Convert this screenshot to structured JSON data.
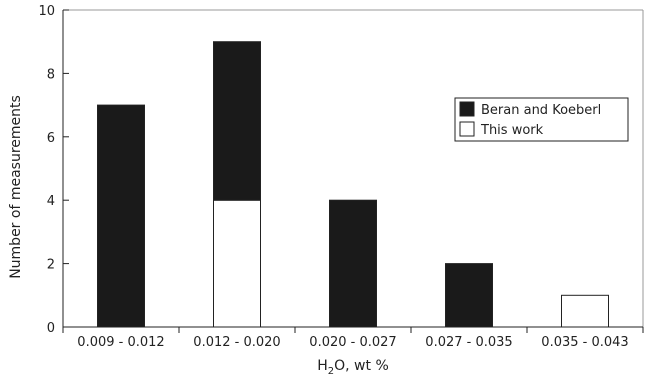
{
  "chart_data": {
    "type": "bar",
    "stacked": true,
    "categories": [
      "0.009 - 0.012",
      "0.012 - 0.020",
      "0.020 - 0.027",
      "0.027 - 0.035",
      "0.035 - 0.043"
    ],
    "series": [
      {
        "name": "This work",
        "color": "#ffffff",
        "values": [
          0,
          4,
          0,
          0,
          1
        ]
      },
      {
        "name": "Beran and Koeberl",
        "color": "#1a1a1a",
        "values": [
          7,
          5,
          4,
          2,
          0
        ]
      }
    ],
    "yticks": [
      0,
      2,
      4,
      6,
      8,
      10
    ],
    "ylim": [
      0,
      10
    ],
    "ylabel": "Number of measurements",
    "xlabel": {
      "main": "H",
      "sub": "2",
      "rest": "O, wt %"
    },
    "legend": {
      "position": "right-center",
      "order": [
        "Beran and Koeberl",
        "This work"
      ]
    },
    "grid": false
  }
}
